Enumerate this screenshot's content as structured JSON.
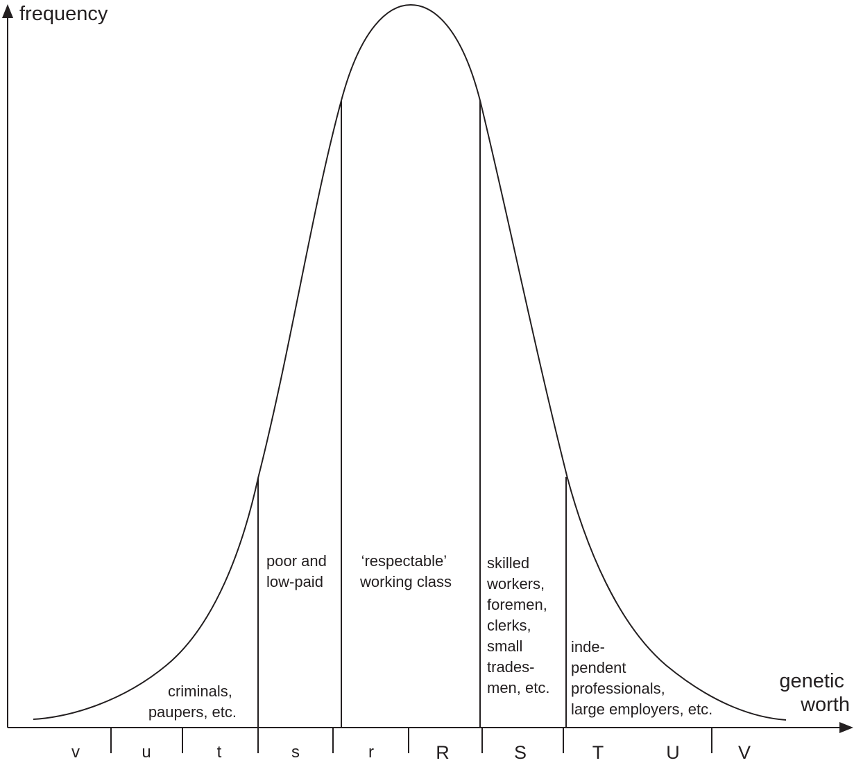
{
  "axes": {
    "y_label": "frequency",
    "x_label_lines": [
      "genetic",
      "worth"
    ]
  },
  "grades": [
    "v",
    "u",
    "t",
    "s",
    "r",
    "R",
    "S",
    "T",
    "U",
    "V"
  ],
  "bands": {
    "criminals": [
      "criminals,",
      "paupers, etc."
    ],
    "poor": [
      "poor and",
      "low-paid"
    ],
    "respectable": [
      "‘respectable’",
      "working class"
    ],
    "skilled": [
      "skilled",
      "workers,",
      "foremen,",
      "clerks,",
      "small",
      "trades-",
      "men, etc."
    ],
    "independent": [
      "inde-",
      "pendent",
      "professionals,",
      "large employers, etc."
    ]
  },
  "colors": {
    "ink": "#231f20",
    "background": "#ffffff"
  }
}
